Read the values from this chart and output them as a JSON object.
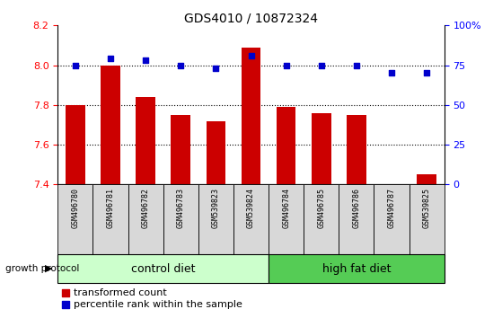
{
  "title": "GDS4010 / 10872324",
  "samples": [
    "GSM496780",
    "GSM496781",
    "GSM496782",
    "GSM496783",
    "GSM539823",
    "GSM539824",
    "GSM496784",
    "GSM496785",
    "GSM496786",
    "GSM496787",
    "GSM539825"
  ],
  "red_values": [
    7.8,
    8.0,
    7.84,
    7.75,
    7.72,
    8.09,
    7.79,
    7.76,
    7.75,
    7.4,
    7.45
  ],
  "blue_values": [
    75,
    79,
    78,
    75,
    73,
    81,
    75,
    75,
    75,
    70,
    70
  ],
  "ylim_left": [
    7.4,
    8.2
  ],
  "ylim_right": [
    0,
    100
  ],
  "yticks_left": [
    7.4,
    7.6,
    7.8,
    8.0,
    8.2
  ],
  "yticks_right": [
    0,
    25,
    50,
    75,
    100
  ],
  "ytick_labels_right": [
    "0",
    "25",
    "50",
    "75",
    "100%"
  ],
  "group1_label": "control diet",
  "group2_label": "high fat diet",
  "group1_indices": [
    0,
    1,
    2,
    3,
    4,
    5
  ],
  "group2_indices": [
    6,
    7,
    8,
    9,
    10
  ],
  "protocol_label": "growth protocol",
  "bar_color": "#cc0000",
  "dot_color": "#0000cc",
  "group1_bg": "#ccffcc",
  "group2_bg": "#55cc55",
  "xticklabel_bg": "#d8d8d8",
  "legend_red_label": "transformed count",
  "legend_blue_label": "percentile rank within the sample"
}
